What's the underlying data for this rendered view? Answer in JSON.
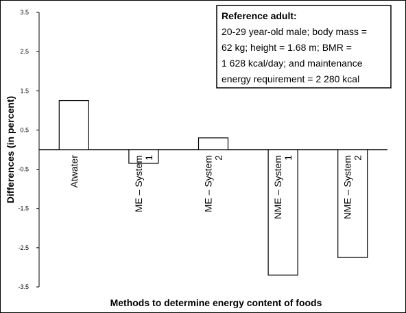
{
  "chart_data": {
    "type": "bar",
    "xlabel": "Methods to determine energy content of foods",
    "ylabel": "Differences (in percent)",
    "ylim": [
      -3.5,
      3.5
    ],
    "yticks": [
      "3.5",
      "2.5",
      "1.5",
      "0.5",
      "-0.5",
      "-1.5",
      "-2.5",
      "-3.5"
    ],
    "categories": [
      [
        "Atwater"
      ],
      [
        "ME – System",
        "1"
      ],
      [
        "ME – System",
        "2"
      ],
      [
        "NME – System",
        "1"
      ],
      [
        "NME – System",
        "2"
      ]
    ],
    "values": [
      1.25,
      -0.35,
      0.3,
      -3.2,
      -2.75
    ],
    "grid": false,
    "bar_fill": "#ffffff",
    "bar_stroke": "#000000",
    "annotation": {
      "title": "Reference adult:",
      "lines": [
        "20-29 year-old male; body mass =",
        "62 kg; height = 1.68 m; BMR =",
        "1 628 kcal/day; and maintenance",
        "energy requirement = 2 280 kcal"
      ]
    }
  }
}
